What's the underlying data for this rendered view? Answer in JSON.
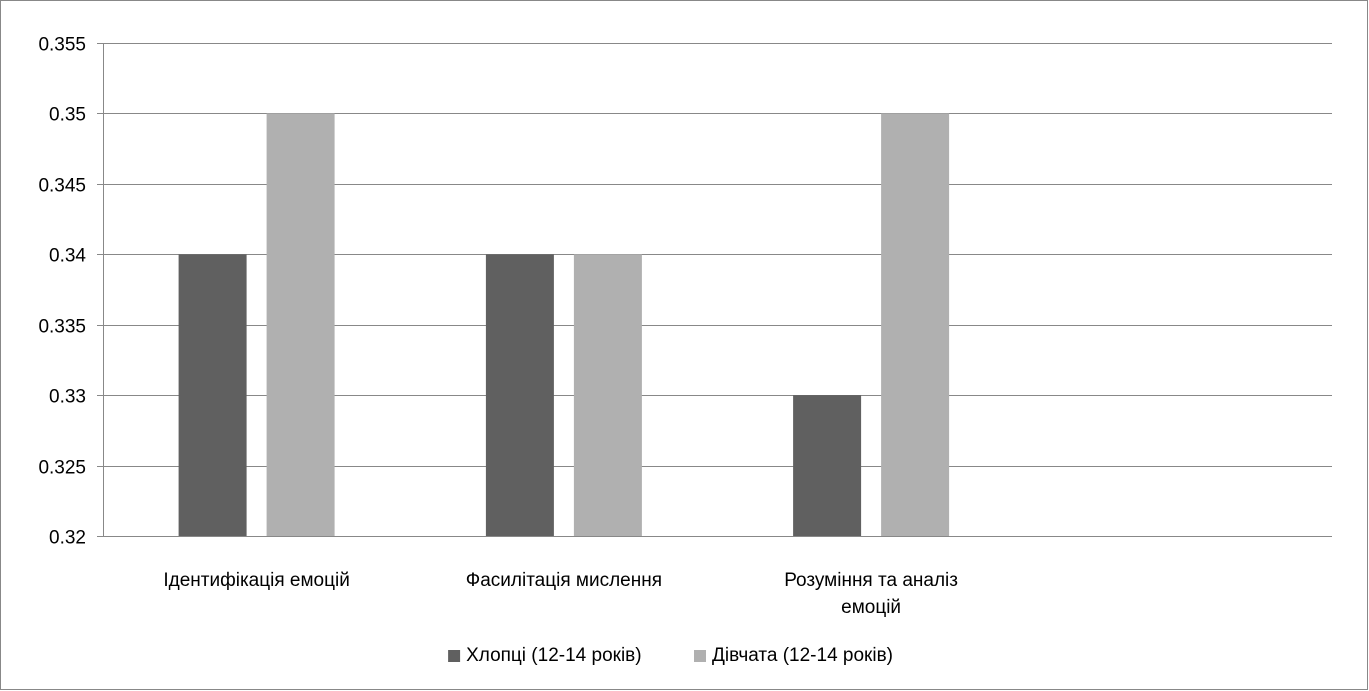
{
  "chart_data": {
    "type": "bar",
    "title": "",
    "xlabel": "",
    "ylabel": "",
    "categories": [
      [
        "Ідентифікація емоцій"
      ],
      [
        "Фасилітація мислення"
      ],
      [
        "Розуміння та аналіз",
        "емоцій"
      ]
    ],
    "series": [
      {
        "name": "Хлопці (12-14 років)",
        "values": [
          0.34,
          0.34,
          0.33
        ],
        "color": "#606060"
      },
      {
        "name": "Дівчата (12-14 років)",
        "values": [
          0.35,
          0.34,
          0.35
        ],
        "color": "#b0b0b0"
      }
    ],
    "ylim": [
      0.32,
      0.355
    ],
    "yticks": [
      "0.32",
      "0.325",
      "0.33",
      "0.335",
      "0.34",
      "0.345",
      "0.35",
      "0.355"
    ],
    "empty_category_slots": 1,
    "grid": true,
    "legend_position": "bottom",
    "colors": {
      "gridline": "#888888",
      "frame": "#888888",
      "series_1": "#606060",
      "series_2": "#b0b0b0"
    }
  }
}
